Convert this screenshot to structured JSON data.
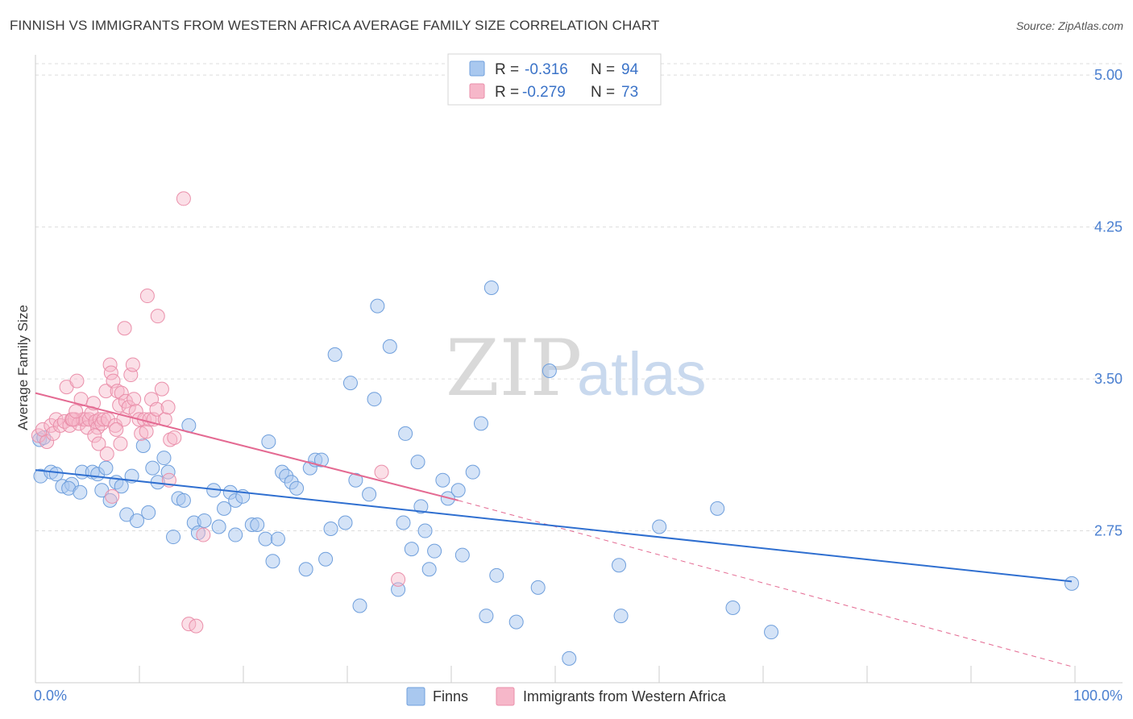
{
  "title": "FINNISH VS IMMIGRANTS FROM WESTERN AFRICA AVERAGE FAMILY SIZE CORRELATION CHART",
  "source": "Source: ZipAtlas.com",
  "watermark": {
    "zip": "ZIP",
    "atlas": "atlas"
  },
  "colors": {
    "finns_fill": "#a9c8ef",
    "finns_stroke": "#6f9fdc",
    "finns_line": "#2f6fd0",
    "wafrica_fill": "#f6b7c9",
    "wafrica_stroke": "#ea8faa",
    "wafrica_line": "#e46a92",
    "grid": "#dddddd",
    "tick_label": "#4a7fd0"
  },
  "stats": [
    {
      "r_label": "R =",
      "r_value": "-0.316",
      "n_label": "N =",
      "n_value": "94"
    },
    {
      "r_label": "R =",
      "r_value": "-0.279",
      "n_label": "N =",
      "n_value": "73"
    }
  ],
  "chart_data": {
    "type": "scatter",
    "title": "FINNISH VS IMMIGRANTS FROM WESTERN AFRICA AVERAGE FAMILY SIZE CORRELATION CHART",
    "xlabel": "",
    "ylabel": "Average Family Size",
    "xlim": [
      0,
      100
    ],
    "ylim": [
      2.0,
      5.1
    ],
    "x_tick_labels": [
      "0.0%",
      "100.0%"
    ],
    "y_ticks": [
      2.75,
      3.5,
      4.25,
      5.0
    ],
    "y_tick_labels": [
      "2.75",
      "3.50",
      "4.25",
      "5.00"
    ],
    "grid": true,
    "legend_position": "bottom-center",
    "series": [
      {
        "name": "Finns",
        "trend": {
          "x0": 0,
          "y0": 3.05,
          "x1": 100,
          "y1": 2.5
        },
        "points": [
          [
            0.4,
            3.2
          ],
          [
            0.5,
            3.02
          ],
          [
            1.5,
            3.04
          ],
          [
            2,
            3.03
          ],
          [
            2.6,
            2.97
          ],
          [
            3.5,
            2.98
          ],
          [
            3.2,
            2.96
          ],
          [
            4.3,
            2.94
          ],
          [
            4.5,
            3.04
          ],
          [
            5.5,
            3.04
          ],
          [
            6,
            3.03
          ],
          [
            6.4,
            2.95
          ],
          [
            6.8,
            3.06
          ],
          [
            7.2,
            2.9
          ],
          [
            7.8,
            2.99
          ],
          [
            8.3,
            2.97
          ],
          [
            8.8,
            2.83
          ],
          [
            9.3,
            3.02
          ],
          [
            9.8,
            2.8
          ],
          [
            10.4,
            3.17
          ],
          [
            10.9,
            2.84
          ],
          [
            11.3,
            3.06
          ],
          [
            11.8,
            2.99
          ],
          [
            12.4,
            3.11
          ],
          [
            12.8,
            3.04
          ],
          [
            13.3,
            2.72
          ],
          [
            13.8,
            2.91
          ],
          [
            14.3,
            2.9
          ],
          [
            14.8,
            3.27
          ],
          [
            15.3,
            2.79
          ],
          [
            15.7,
            2.74
          ],
          [
            16.3,
            2.8
          ],
          [
            17.2,
            2.95
          ],
          [
            17.7,
            2.77
          ],
          [
            18.2,
            2.86
          ],
          [
            18.8,
            2.94
          ],
          [
            19.3,
            2.9
          ],
          [
            19.3,
            2.73
          ],
          [
            20,
            2.92
          ],
          [
            20.9,
            2.78
          ],
          [
            21.4,
            2.78
          ],
          [
            22.2,
            2.71
          ],
          [
            22.5,
            3.19
          ],
          [
            22.9,
            2.6
          ],
          [
            23.4,
            2.71
          ],
          [
            23.8,
            3.04
          ],
          [
            24.2,
            3.02
          ],
          [
            24.7,
            2.99
          ],
          [
            25.2,
            2.96
          ],
          [
            26.1,
            2.56
          ],
          [
            26.5,
            3.06
          ],
          [
            27,
            3.1
          ],
          [
            27.6,
            3.1
          ],
          [
            28,
            2.61
          ],
          [
            28.5,
            2.76
          ],
          [
            28.9,
            3.62
          ],
          [
            29.9,
            2.79
          ],
          [
            30.4,
            3.48
          ],
          [
            30.9,
            3.0
          ],
          [
            31.3,
            2.38
          ],
          [
            32.2,
            2.93
          ],
          [
            32.7,
            3.4
          ],
          [
            33,
            3.86
          ],
          [
            34.2,
            3.66
          ],
          [
            35,
            2.46
          ],
          [
            35.5,
            2.79
          ],
          [
            35.7,
            3.23
          ],
          [
            36.3,
            2.66
          ],
          [
            36.9,
            3.09
          ],
          [
            37.2,
            2.87
          ],
          [
            37.6,
            2.75
          ],
          [
            38,
            2.56
          ],
          [
            38.5,
            2.65
          ],
          [
            39.3,
            3.0
          ],
          [
            39.8,
            2.91
          ],
          [
            40.8,
            2.95
          ],
          [
            41.2,
            2.63
          ],
          [
            42.2,
            3.04
          ],
          [
            43,
            3.28
          ],
          [
            43.5,
            2.33
          ],
          [
            44,
            3.95
          ],
          [
            44.5,
            2.53
          ],
          [
            46.4,
            2.3
          ],
          [
            48.5,
            2.47
          ],
          [
            49.6,
            3.54
          ],
          [
            51.5,
            2.12
          ],
          [
            56.3,
            2.58
          ],
          [
            56.5,
            2.33
          ],
          [
            60.2,
            2.77
          ],
          [
            65.8,
            2.86
          ],
          [
            67.3,
            2.37
          ],
          [
            71,
            2.25
          ],
          [
            100,
            2.49
          ],
          [
            0.8,
            3.21
          ]
        ]
      },
      {
        "name": "Immigrants from Western Africa",
        "trend": {
          "x0": 0,
          "y0": 3.43,
          "x1": 40.8,
          "y1": 2.9
        },
        "trend_extension": {
          "x0": 40.8,
          "y0": 2.9,
          "x1": 100,
          "y1": 2.08
        },
        "points": [
          [
            0.3,
            3.22
          ],
          [
            0.7,
            3.25
          ],
          [
            1.1,
            3.19
          ],
          [
            1.5,
            3.27
          ],
          [
            1.7,
            3.23
          ],
          [
            2,
            3.3
          ],
          [
            2.4,
            3.27
          ],
          [
            2.8,
            3.29
          ],
          [
            3,
            3.46
          ],
          [
            3.3,
            3.27
          ],
          [
            3.5,
            3.3
          ],
          [
            3.8,
            3.3
          ],
          [
            4,
            3.49
          ],
          [
            4.2,
            3.28
          ],
          [
            4.4,
            3.4
          ],
          [
            4.6,
            3.3
          ],
          [
            4.8,
            3.3
          ],
          [
            5,
            3.26
          ],
          [
            5.2,
            3.3
          ],
          [
            5.4,
            3.33
          ],
          [
            5.6,
            3.38
          ],
          [
            5.8,
            3.29
          ],
          [
            6,
            3.26
          ],
          [
            6.2,
            3.3
          ],
          [
            6.4,
            3.28
          ],
          [
            6.6,
            3.3
          ],
          [
            6.8,
            3.44
          ],
          [
            7,
            3.3
          ],
          [
            7.2,
            3.57
          ],
          [
            7.3,
            3.53
          ],
          [
            7.5,
            3.49
          ],
          [
            7.7,
            3.27
          ],
          [
            7.9,
            3.44
          ],
          [
            8.1,
            3.37
          ],
          [
            8.3,
            3.43
          ],
          [
            8.5,
            3.3
          ],
          [
            8.7,
            3.39
          ],
          [
            9,
            3.36
          ],
          [
            9.2,
            3.52
          ],
          [
            9.5,
            3.4
          ],
          [
            9.7,
            3.34
          ],
          [
            10,
            3.3
          ],
          [
            10.2,
            3.23
          ],
          [
            10.5,
            3.3
          ],
          [
            10.7,
            3.24
          ],
          [
            11,
            3.3
          ],
          [
            11.2,
            3.4
          ],
          [
            11.4,
            3.3
          ],
          [
            11.7,
            3.35
          ],
          [
            12.2,
            3.45
          ],
          [
            12.5,
            3.3
          ],
          [
            12.8,
            3.36
          ],
          [
            13,
            3.2
          ],
          [
            13.4,
            3.21
          ],
          [
            14.3,
            4.39
          ],
          [
            14.8,
            2.29
          ],
          [
            15.5,
            2.28
          ],
          [
            16.2,
            2.73
          ],
          [
            3.6,
            3.3
          ],
          [
            3.9,
            3.34
          ],
          [
            5.7,
            3.22
          ],
          [
            6.1,
            3.18
          ],
          [
            6.9,
            3.13
          ],
          [
            7.4,
            2.92
          ],
          [
            7.8,
            3.25
          ],
          [
            8.2,
            3.18
          ],
          [
            8.6,
            3.75
          ],
          [
            9.4,
            3.57
          ],
          [
            10.8,
            3.91
          ],
          [
            11.8,
            3.81
          ],
          [
            12.9,
            3.0
          ],
          [
            33.4,
            3.04
          ],
          [
            35,
            2.51
          ]
        ]
      }
    ]
  },
  "legend": [
    {
      "label": "Finns"
    },
    {
      "label": "Immigrants from Western Africa"
    }
  ]
}
